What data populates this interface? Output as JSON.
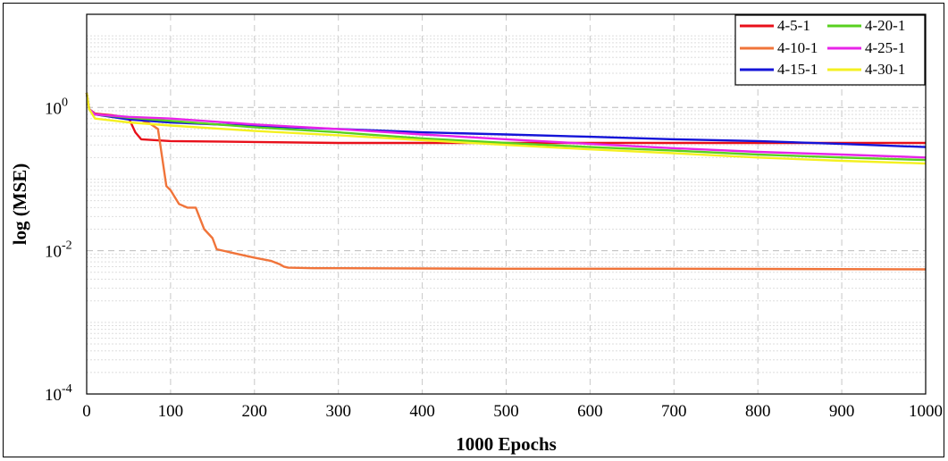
{
  "chart_data": {
    "type": "line",
    "title": "",
    "xlabel": "1000 Epochs",
    "ylabel": "log (MSE)",
    "x_scale": "linear",
    "y_scale": "log",
    "xlim": [
      0,
      1000
    ],
    "ylim": [
      0.0001,
      20
    ],
    "x_ticks": [
      0,
      100,
      200,
      300,
      400,
      500,
      600,
      700,
      800,
      900,
      1000
    ],
    "y_ticks": [
      {
        "value": 1,
        "base": "10",
        "exp": "0"
      },
      {
        "value": 0.01,
        "base": "10",
        "exp": "-2"
      },
      {
        "value": 0.0001,
        "base": "10",
        "exp": "-4"
      }
    ],
    "grid": true,
    "legend_position": "top-right",
    "series": [
      {
        "name": "4-5-1",
        "color": "#e8101a",
        "x": [
          0,
          3,
          10,
          30,
          50,
          58,
          65,
          100,
          200,
          300,
          500,
          700,
          1000
        ],
        "y": [
          1.6,
          0.95,
          0.82,
          0.78,
          0.72,
          0.45,
          0.36,
          0.34,
          0.33,
          0.32,
          0.32,
          0.32,
          0.32
        ]
      },
      {
        "name": "4-10-1",
        "color": "#f0743a",
        "x": [
          0,
          3,
          10,
          30,
          60,
          75,
          85,
          90,
          95,
          100,
          110,
          120,
          130,
          140,
          150,
          155,
          180,
          200,
          220,
          230,
          235,
          240,
          270,
          300,
          500,
          700,
          1000
        ],
        "y": [
          1.6,
          0.95,
          0.8,
          0.75,
          0.7,
          0.6,
          0.5,
          0.2,
          0.08,
          0.07,
          0.045,
          0.04,
          0.04,
          0.02,
          0.015,
          0.0105,
          0.009,
          0.008,
          0.0072,
          0.0065,
          0.006,
          0.0058,
          0.0057,
          0.0057,
          0.0056,
          0.0056,
          0.0055
        ]
      },
      {
        "name": "4-15-1",
        "color": "#1414d8",
        "x": [
          0,
          3,
          10,
          50,
          100,
          200,
          300,
          400,
          500,
          600,
          700,
          800,
          900,
          1000
        ],
        "y": [
          1.6,
          0.95,
          0.8,
          0.68,
          0.62,
          0.55,
          0.5,
          0.45,
          0.42,
          0.39,
          0.36,
          0.34,
          0.31,
          0.28
        ]
      },
      {
        "name": "4-20-1",
        "color": "#58d020",
        "x": [
          0,
          3,
          10,
          50,
          100,
          200,
          300,
          400,
          500,
          600,
          700,
          800,
          900,
          1000
        ],
        "y": [
          1.6,
          0.95,
          0.8,
          0.72,
          0.65,
          0.53,
          0.45,
          0.37,
          0.32,
          0.28,
          0.25,
          0.22,
          0.2,
          0.185
        ]
      },
      {
        "name": "4-25-1",
        "color": "#e824e8",
        "x": [
          0,
          3,
          10,
          50,
          100,
          200,
          300,
          400,
          500,
          600,
          700,
          800,
          900,
          1000
        ],
        "y": [
          1.6,
          0.95,
          0.8,
          0.74,
          0.7,
          0.58,
          0.5,
          0.42,
          0.36,
          0.31,
          0.27,
          0.24,
          0.22,
          0.2
        ]
      },
      {
        "name": "4-30-1",
        "color": "#f4f020",
        "x": [
          0,
          3,
          10,
          50,
          100,
          200,
          300,
          400,
          500,
          600,
          700,
          800,
          900,
          1000
        ],
        "y": [
          1.6,
          0.95,
          0.7,
          0.62,
          0.56,
          0.47,
          0.41,
          0.35,
          0.3,
          0.26,
          0.23,
          0.2,
          0.18,
          0.165
        ]
      }
    ]
  }
}
